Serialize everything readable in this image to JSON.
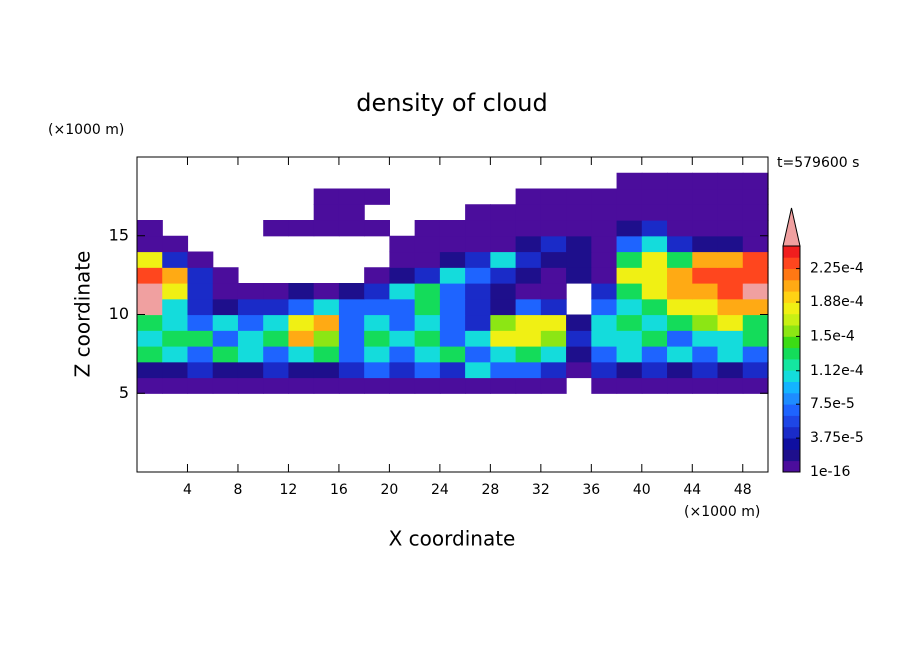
{
  "chart_data": {
    "type": "contour",
    "title": "density of cloud",
    "y_unit": "(×1000 m)",
    "x_unit": "(×1000 m)",
    "xlabel": "X coordinate",
    "ylabel": "Z coordinate",
    "annotation": "t=579600 s",
    "xlim": [
      0,
      50
    ],
    "ylim": [
      0,
      20
    ],
    "xticks": [
      4,
      8,
      12,
      16,
      20,
      24,
      28,
      32,
      36,
      40,
      44,
      48
    ],
    "yticks": [
      5,
      10,
      15
    ],
    "x": [
      1,
      3,
      5,
      7,
      9,
      11,
      13,
      15,
      17,
      19,
      21,
      23,
      25,
      27,
      29,
      31,
      33,
      35,
      37,
      39,
      41,
      43,
      45,
      47,
      49
    ],
    "y": [
      5.5,
      6.5,
      7.5,
      8.5,
      9.5,
      10.5,
      11.5,
      12.5,
      13.5,
      14.5,
      15.5,
      16.5,
      17.5,
      18.5
    ],
    "z": [
      [
        5e-06,
        5e-06,
        5e-06,
        5e-06,
        5e-06,
        5e-06,
        5e-06,
        5e-06,
        5e-06,
        5e-06,
        5e-06,
        5e-06,
        5e-06,
        5e-06,
        5e-06,
        5e-06,
        5e-06,
        null,
        5e-06,
        5e-06,
        5e-06,
        5e-06,
        5e-06,
        5e-06,
        5e-06
      ],
      [
        2e-05,
        2e-05,
        4e-05,
        2e-05,
        2e-05,
        4e-05,
        2e-05,
        2e-05,
        4e-05,
        7e-05,
        4e-05,
        7e-05,
        4e-05,
        0.000105,
        7e-05,
        7e-05,
        4e-05,
        5e-06,
        4e-05,
        2e-05,
        4e-05,
        2e-05,
        4e-05,
        2e-05,
        4e-05
      ],
      [
        0.00013,
        0.000105,
        7e-05,
        0.00013,
        0.000105,
        7e-05,
        0.000105,
        0.00013,
        7e-05,
        0.000105,
        7e-05,
        0.000105,
        0.00013,
        7e-05,
        0.000105,
        0.00013,
        0.000105,
        2e-05,
        7e-05,
        0.000105,
        7e-05,
        0.000105,
        7e-05,
        0.000105,
        7e-05
      ],
      [
        0.000105,
        0.00013,
        0.00013,
        7e-05,
        0.000105,
        0.00013,
        0.000205,
        0.000155,
        7e-05,
        0.00013,
        0.000105,
        0.00013,
        7e-05,
        0.000105,
        0.00018,
        0.00018,
        0.000155,
        4e-05,
        0.000105,
        0.000105,
        0.00013,
        7e-05,
        0.000105,
        0.000105,
        0.00013
      ],
      [
        0.00013,
        0.000105,
        7e-05,
        0.000105,
        7e-05,
        0.000105,
        0.00018,
        0.000205,
        7e-05,
        0.000105,
        7e-05,
        0.000105,
        7e-05,
        4e-05,
        0.000155,
        0.00018,
        0.00018,
        2e-05,
        0.000105,
        0.00013,
        0.000105,
        0.00013,
        0.000155,
        0.00018,
        0.00013
      ],
      [
        0.000255,
        0.000105,
        4e-05,
        2e-05,
        4e-05,
        4e-05,
        7e-05,
        0.000105,
        7e-05,
        7e-05,
        7e-05,
        0.00013,
        7e-05,
        4e-05,
        2e-05,
        7e-05,
        4e-05,
        null,
        7e-05,
        0.000105,
        0.00013,
        0.00018,
        0.00018,
        0.000205,
        0.000205
      ],
      [
        0.000255,
        0.00018,
        4e-05,
        5e-06,
        5e-06,
        5e-06,
        2e-05,
        5e-06,
        2e-05,
        4e-05,
        0.000105,
        0.00013,
        7e-05,
        4e-05,
        2e-05,
        5e-06,
        5e-06,
        null,
        4e-05,
        0.00013,
        0.00018,
        0.000205,
        0.000205,
        0.00023,
        0.000255
      ],
      [
        0.00023,
        0.000205,
        4e-05,
        5e-06,
        null,
        null,
        null,
        null,
        null,
        5e-06,
        2e-05,
        4e-05,
        0.000105,
        7e-05,
        4e-05,
        2e-05,
        5e-06,
        2e-05,
        5e-06,
        0.00018,
        0.00018,
        0.000205,
        0.00023,
        0.00023,
        0.00023
      ],
      [
        0.00018,
        4e-05,
        5e-06,
        null,
        null,
        null,
        null,
        null,
        null,
        null,
        5e-06,
        5e-06,
        2e-05,
        4e-05,
        0.000105,
        4e-05,
        2e-05,
        2e-05,
        5e-06,
        0.00013,
        0.00018,
        0.00013,
        0.000205,
        0.000205,
        0.00023
      ],
      [
        5e-06,
        5e-06,
        null,
        null,
        null,
        null,
        null,
        null,
        null,
        null,
        5e-06,
        5e-06,
        5e-06,
        5e-06,
        5e-06,
        2e-05,
        4e-05,
        2e-05,
        5e-06,
        7e-05,
        0.000105,
        4e-05,
        2e-05,
        2e-05,
        5e-06
      ],
      [
        5e-06,
        null,
        null,
        null,
        null,
        5e-06,
        5e-06,
        5e-06,
        5e-06,
        5e-06,
        null,
        5e-06,
        5e-06,
        5e-06,
        5e-06,
        5e-06,
        5e-06,
        5e-06,
        5e-06,
        2e-05,
        4e-05,
        5e-06,
        5e-06,
        5e-06,
        5e-06
      ],
      [
        null,
        null,
        null,
        null,
        null,
        null,
        null,
        5e-06,
        5e-06,
        null,
        null,
        null,
        null,
        5e-06,
        5e-06,
        5e-06,
        5e-06,
        5e-06,
        5e-06,
        5e-06,
        5e-06,
        5e-06,
        5e-06,
        5e-06,
        5e-06
      ],
      [
        null,
        null,
        null,
        null,
        null,
        null,
        null,
        5e-06,
        5e-06,
        5e-06,
        null,
        null,
        null,
        null,
        null,
        5e-06,
        5e-06,
        5e-06,
        5e-06,
        5e-06,
        5e-06,
        5e-06,
        5e-06,
        5e-06,
        5e-06
      ],
      [
        null,
        null,
        null,
        null,
        null,
        null,
        null,
        null,
        null,
        null,
        null,
        null,
        null,
        null,
        null,
        null,
        null,
        null,
        null,
        5e-06,
        5e-06,
        5e-06,
        5e-06,
        5e-06,
        5e-06
      ]
    ],
    "levels": [
      1e-16,
      1.25e-05,
      2.5e-05,
      3.75e-05,
      5e-05,
      6.25e-05,
      7.5e-05,
      8.75e-05,
      0.0001,
      0.0001125,
      0.000125,
      0.0001375,
      0.00015,
      0.0001625,
      0.000175,
      0.0001875,
      0.0002,
      0.0002125,
      0.000225,
      0.0002375,
      0.00025
    ],
    "colors": [
      "#4b0d9c",
      "#1e0f8c",
      "#0f0fa0",
      "#1a2bc8",
      "#1e46e6",
      "#1e64ff",
      "#1e8cff",
      "#14b4ff",
      "#14dcdc",
      "#14e6a0",
      "#14dc5a",
      "#3cdc14",
      "#8ce614",
      "#c8f014",
      "#f0f014",
      "#ffd214",
      "#ffaa14",
      "#ff7814",
      "#ff461e",
      "#f01e1e"
    ],
    "overflow_color": "#f0a0a0",
    "colorbar_ticks": [
      1e-16,
      {
        "value": 3.75e-05,
        "label": "3.75e-5"
      },
      {
        "value": 7.5e-05,
        "label": "7.5e-5"
      },
      {
        "value": 0.000112,
        "label": "1.12e-4"
      },
      {
        "value": 0.00015,
        "label": "1.5e-4"
      },
      {
        "value": 0.000188,
        "label": "1.88e-4"
      },
      {
        "value": 0.000225,
        "label": "2.25e-4"
      }
    ]
  }
}
